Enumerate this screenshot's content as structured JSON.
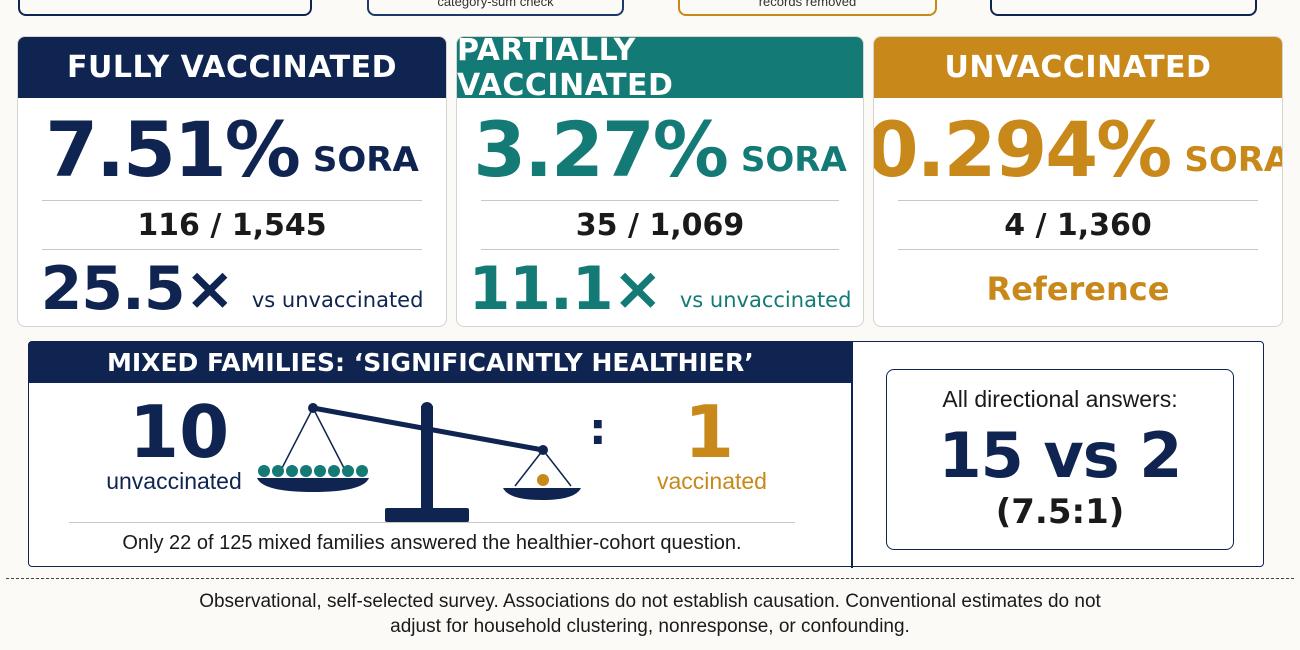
{
  "top_pills": [
    "",
    "category-sum check",
    "records removed",
    ""
  ],
  "cards": [
    {
      "title": "FULLY VACCINATED",
      "rate": "7.51%",
      "rate_unit": "SORA",
      "fraction": "116 / 1,545",
      "ratio": "25.5×",
      "ratio_label": "vs unvaccinated",
      "color": "#0f2450"
    },
    {
      "title": "PARTIALLY VACCINATED",
      "rate": "3.27%",
      "rate_unit": "SORA",
      "fraction": "35 / 1,069",
      "ratio": "11.1×",
      "ratio_label": "vs unvaccinated",
      "color": "#137a76"
    },
    {
      "title": "UNVACCINATED",
      "rate": "0.294%",
      "rate_unit": "SORA",
      "fraction": "4 / 1,360",
      "reference": "Reference",
      "color": "#c8881a"
    }
  ],
  "mixed": {
    "title": "MIXED FAMILIES: ‘SIGNIFICAINTLY HEALTHIER’",
    "left_count": "10",
    "left_label": "unvaccinated",
    "separator": ":",
    "right_count": "1",
    "right_label": "vaccinated",
    "note": "Only 22 of 125 mixed families answered the healthier-cohort question.",
    "scale_icon": "balance-scale-icon"
  },
  "directional": {
    "title": "All directional answers:",
    "value": "15 vs 2",
    "ratio": "(7.5:1)"
  },
  "footer": {
    "line1": "Observational, self-selected survey. Associations do not establish causation. Conventional estimates do not",
    "line2": "adjust for household clustering, nonresponse, or confounding."
  }
}
